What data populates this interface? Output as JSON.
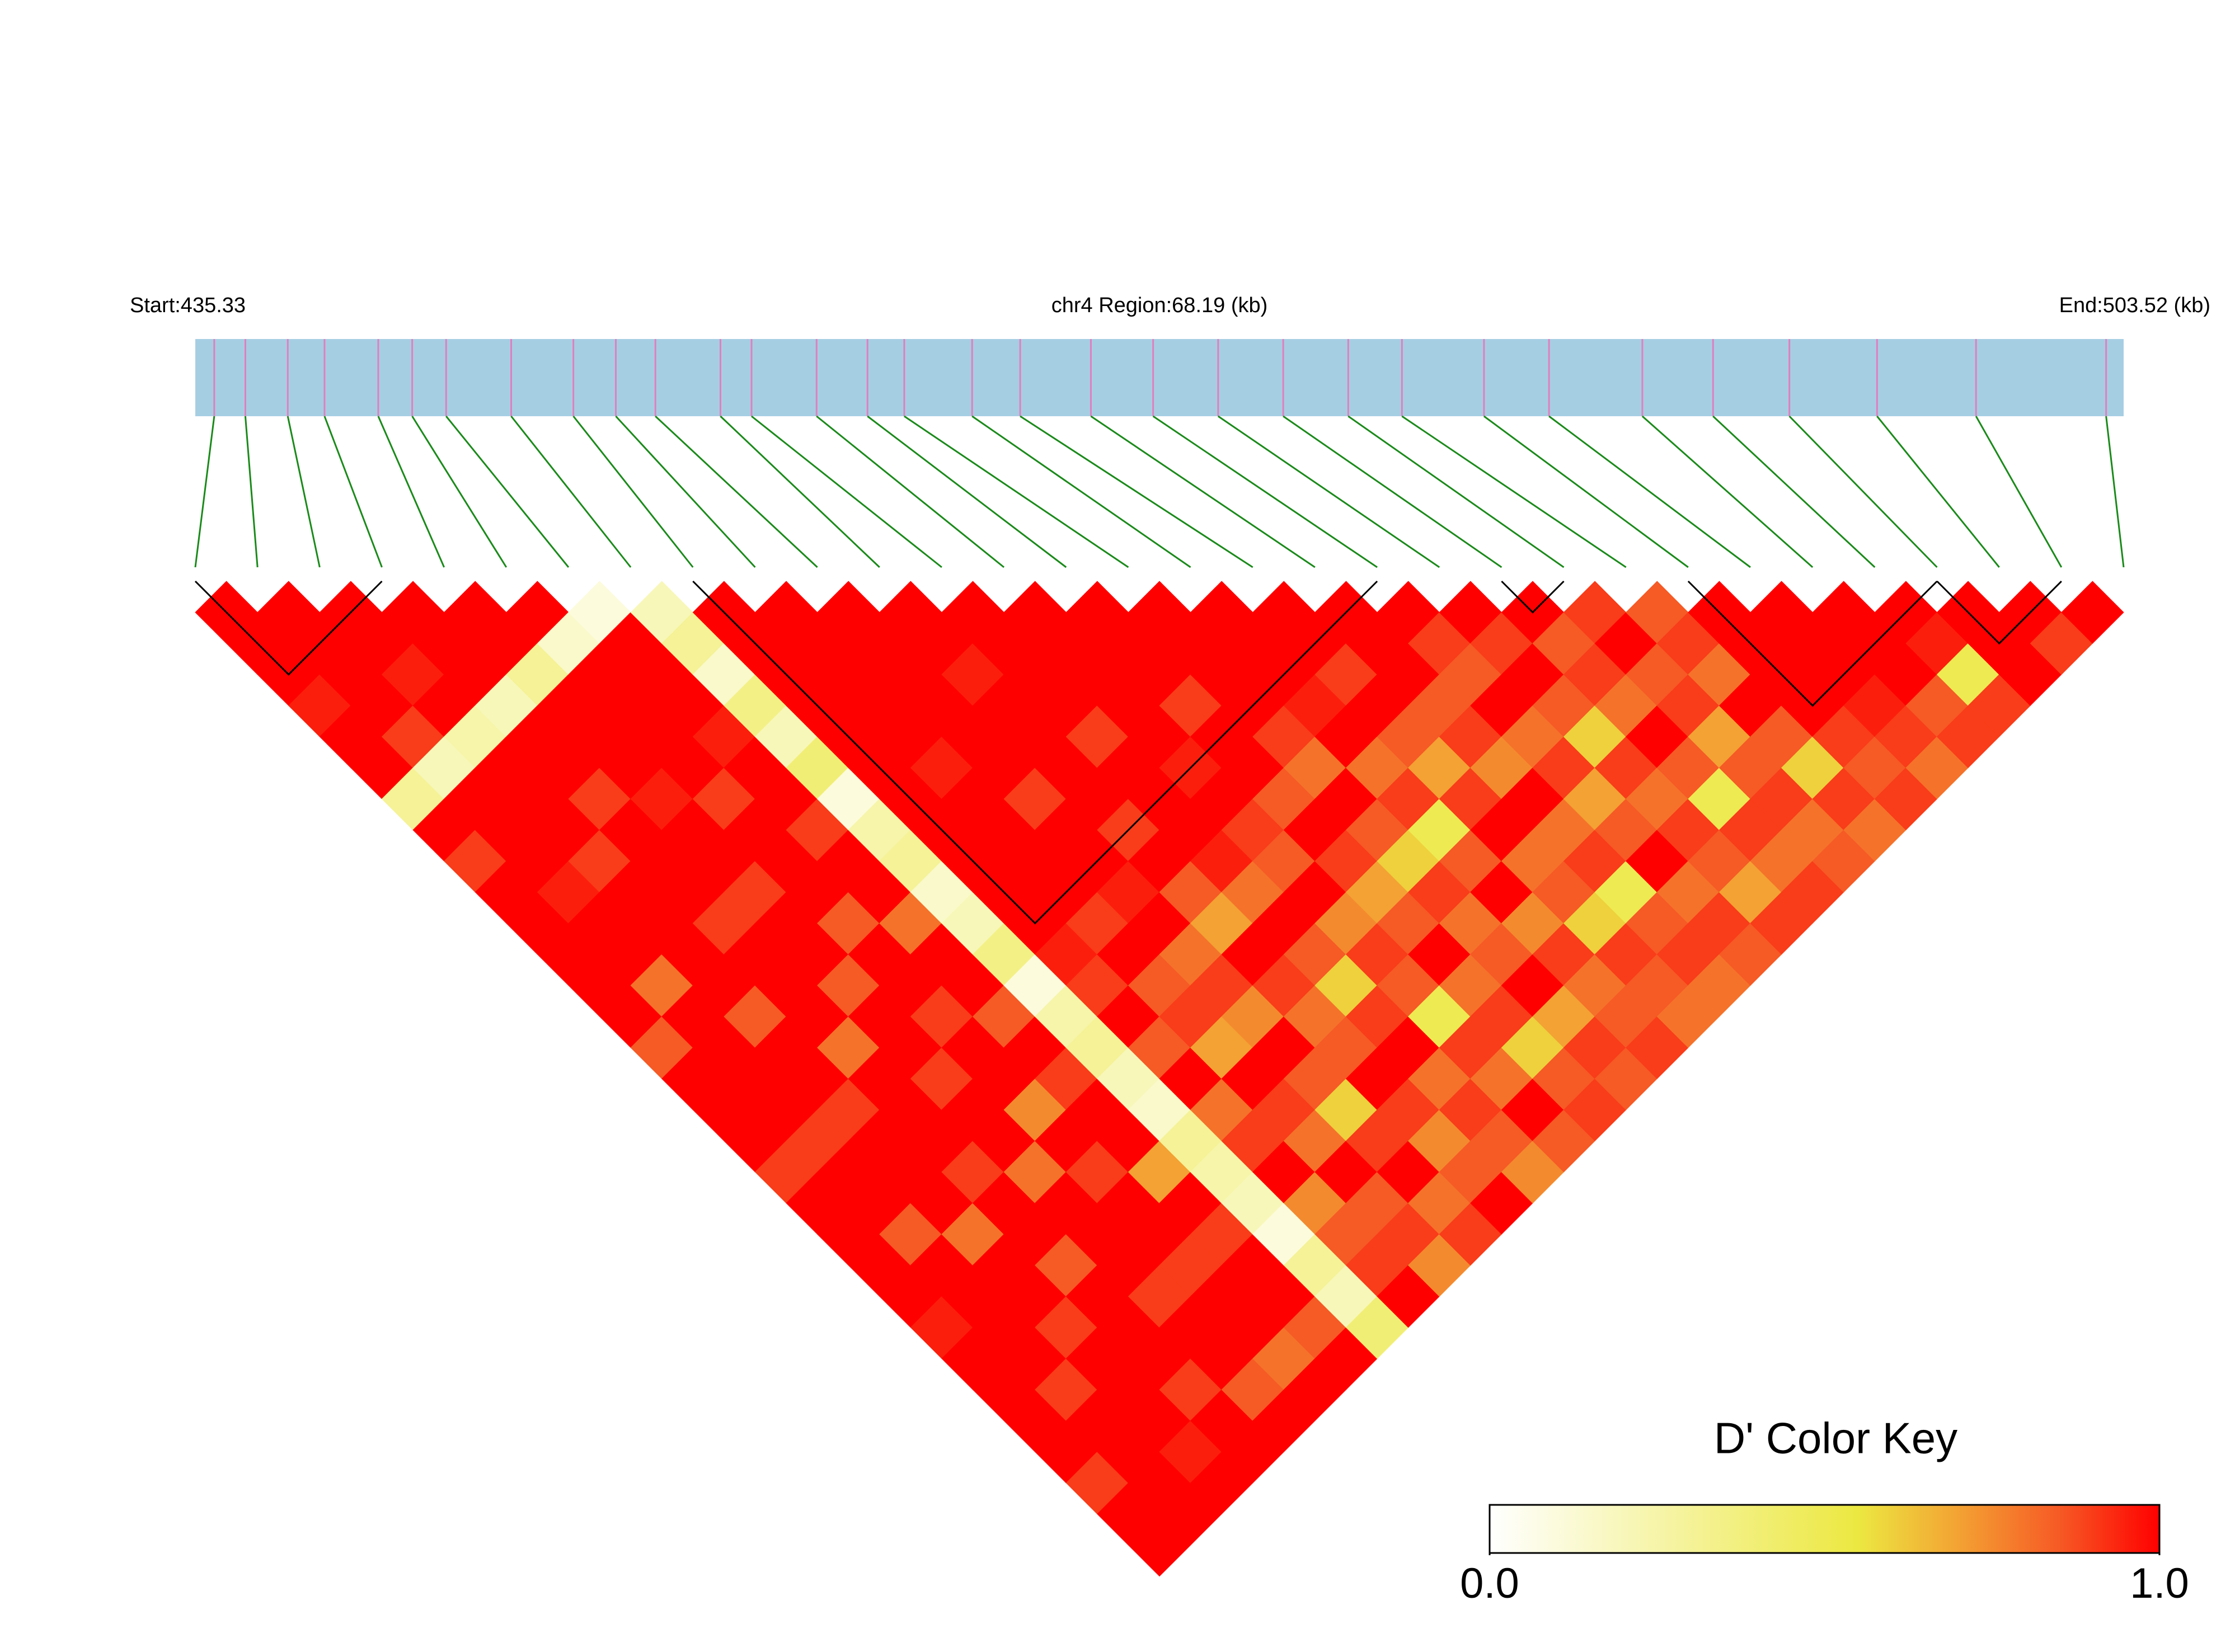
{
  "chart_data": {
    "type": "ld_heatmap",
    "start_label": "Start:435.33",
    "region_label": "chr4 Region:68.19 (kb)",
    "end_label": "End:503.52 (kb)",
    "xlim": [
      435.33,
      503.52
    ],
    "positions": [
      436.0,
      437.1,
      438.6,
      439.9,
      441.8,
      443.0,
      444.2,
      446.5,
      448.7,
      450.2,
      451.6,
      453.9,
      455.0,
      457.3,
      459.1,
      460.4,
      462.8,
      464.5,
      467.0,
      469.2,
      471.5,
      473.8,
      476.1,
      478.0,
      480.9,
      483.2,
      486.5,
      489.0,
      491.7,
      494.8,
      498.3,
      502.9
    ],
    "dprime": [
      [
        1,
        1,
        1,
        0.95,
        1,
        1,
        0.3,
        1,
        0.9,
        1,
        1,
        1,
        1,
        1,
        0.85,
        1,
        1,
        1,
        0.9,
        1,
        1,
        1,
        1,
        0.95,
        1,
        1,
        1,
        1,
        0.9,
        1,
        1
      ],
      [
        1,
        1,
        1,
        1,
        0.9,
        0.2,
        1,
        1,
        1,
        0.95,
        1,
        1,
        0.8,
        1,
        1,
        1,
        1,
        0.9,
        1,
        1,
        0.85,
        1,
        1,
        1,
        1,
        0.9,
        1,
        1,
        1,
        1
      ],
      [
        1,
        1,
        0.95,
        1,
        0.25,
        1,
        1,
        1,
        0.9,
        1,
        1,
        1,
        1,
        0.85,
        1,
        1,
        0.9,
        1,
        1,
        1,
        0.8,
        1,
        1,
        0.9,
        1,
        1,
        1,
        0.95,
        1
      ],
      [
        1,
        1,
        1,
        0.2,
        1,
        1,
        0.9,
        1,
        1,
        1,
        0.9,
        1,
        1,
        1,
        0.8,
        1,
        1,
        1,
        0.9,
        1,
        1,
        0.85,
        1,
        1,
        1,
        0.9,
        1,
        1
      ],
      [
        1,
        1,
        0.3,
        1,
        1,
        1,
        0.95,
        1,
        1,
        0.9,
        1,
        1,
        0.85,
        1,
        1,
        0.9,
        1,
        1,
        0.8,
        1,
        1,
        1,
        0.9,
        1,
        1,
        0.85,
        1
      ],
      [
        1,
        0.15,
        1,
        1,
        1,
        1,
        0.9,
        1,
        1,
        1,
        0.85,
        1,
        1,
        0.9,
        1,
        1,
        0.75,
        1,
        0.9,
        1,
        1,
        0.9,
        1,
        1,
        0.8,
        1
      ],
      [
        0.1,
        1,
        1,
        1,
        0.95,
        1,
        1,
        0.9,
        1,
        1,
        0.8,
        1,
        1,
        0.85,
        1,
        0.9,
        1,
        1,
        0.7,
        1,
        0.9,
        1,
        1,
        0.85,
        1
      ],
      [
        0.2,
        0.3,
        0.15,
        0.35,
        0.2,
        0.4,
        0.1,
        0.25,
        0.3,
        0.15,
        0.2,
        0.35,
        0.1,
        0.25,
        0.3,
        0.2,
        0.15,
        0.3,
        0.25,
        0.2,
        0.1,
        0.3,
        0.2,
        0.4
      ],
      [
        1,
        1,
        1,
        1,
        1,
        1,
        1,
        1,
        1,
        1,
        1,
        0.95,
        0.9,
        1,
        0.85,
        1,
        0.8,
        0.9,
        1,
        0.75,
        0.85,
        0.9,
        1
      ],
      [
        1,
        1,
        1,
        1,
        1,
        0.95,
        1,
        1,
        1,
        1,
        0.9,
        1,
        0.85,
        0.9,
        0.7,
        1,
        0.9,
        0.8,
        1,
        0.85,
        0.9,
        0.75
      ],
      [
        1,
        1,
        1,
        1,
        1,
        1,
        0.9,
        1,
        1,
        0.95,
        1,
        0.8,
        0.9,
        0.75,
        1,
        0.85,
        0.6,
        0.9,
        1,
        0.8,
        0.9
      ],
      [
        1,
        1,
        0.95,
        1,
        1,
        1,
        1,
        0.9,
        1,
        0.85,
        0.7,
        1,
        0.9,
        0.8,
        0.85,
        1,
        0.9,
        0.75,
        0.85,
        1
      ],
      [
        1,
        1,
        1,
        1,
        0.9,
        1,
        1,
        1,
        0.95,
        0.8,
        1,
        0.85,
        0.6,
        0.9,
        1,
        0.8,
        0.9,
        0.85,
        0.75
      ],
      [
        1,
        1,
        1,
        1,
        1,
        0.95,
        1,
        0.9,
        0.85,
        1,
        0.75,
        0.9,
        0.85,
        0.5,
        0.9,
        0.8,
        1,
        0.85
      ],
      [
        1,
        1,
        1,
        0.9,
        1,
        1,
        0.85,
        1,
        0.9,
        0.7,
        0.85,
        1,
        0.8,
        0.9,
        0.6,
        0.85,
        0.9
      ],
      [
        1,
        1,
        1,
        1,
        0.9,
        0.8,
        1,
        0.85,
        0.6,
        0.9,
        0.8,
        0.85,
        1,
        0.7,
        0.9,
        0.85
      ],
      [
        1,
        1,
        1,
        0.95,
        1,
        0.8,
        0.9,
        0.5,
        0.85,
        1,
        0.75,
        0.9,
        0.8,
        0.85,
        0.9
      ],
      [
        1,
        1,
        0.9,
        1,
        0.85,
        0.7,
        0.9,
        1,
        0.8,
        0.85,
        0.6,
        0.9,
        0.85,
        0.8
      ],
      [
        1,
        1,
        1,
        0.85,
        0.9,
        0.75,
        1,
        0.8,
        0.9,
        0.5,
        0.85,
        0.9,
        0.8
      ],
      [
        1,
        0.9,
        0.85,
        1,
        0.8,
        0.9,
        0.7,
        0.85,
        1,
        0.8,
        0.9,
        0.85
      ],
      [
        1,
        0.9,
        1,
        0.85,
        0.6,
        0.9,
        0.8,
        0.9,
        0.85,
        0.7,
        0.9
      ],
      [
        1,
        0.85,
        0.9,
        0.8,
        1,
        0.85,
        0.5,
        0.9,
        0.8,
        0.9
      ],
      [
        0.9,
        1,
        0.85,
        0.9,
        0.7,
        0.85,
        0.9,
        0.8,
        0.85
      ],
      [
        0.85,
        0.9,
        0.8,
        1,
        0.85,
        0.6,
        0.9,
        0.8
      ],
      [
        1,
        1,
        1,
        1,
        0.9,
        0.85,
        0.9
      ],
      [
        1,
        1,
        1,
        0.95,
        0.9,
        0.8
      ],
      [
        1,
        1,
        1,
        0.85,
        0.9
      ],
      [
        1,
        0.95,
        0.5,
        0.9
      ],
      [
        1,
        1,
        1
      ],
      [
        1,
        0.9
      ],
      [
        1
      ]
    ],
    "blocks": [
      [
        0,
        3
      ],
      [
        8,
        19
      ],
      [
        21,
        22
      ],
      [
        24,
        28
      ],
      [
        28,
        30
      ]
    ],
    "key_title": "D' Color Key",
    "key_lim": [
      0,
      1
    ],
    "key_ticks": [
      {
        "value": 0,
        "label": "0.0"
      },
      {
        "value": 1,
        "label": "1.0"
      }
    ]
  }
}
